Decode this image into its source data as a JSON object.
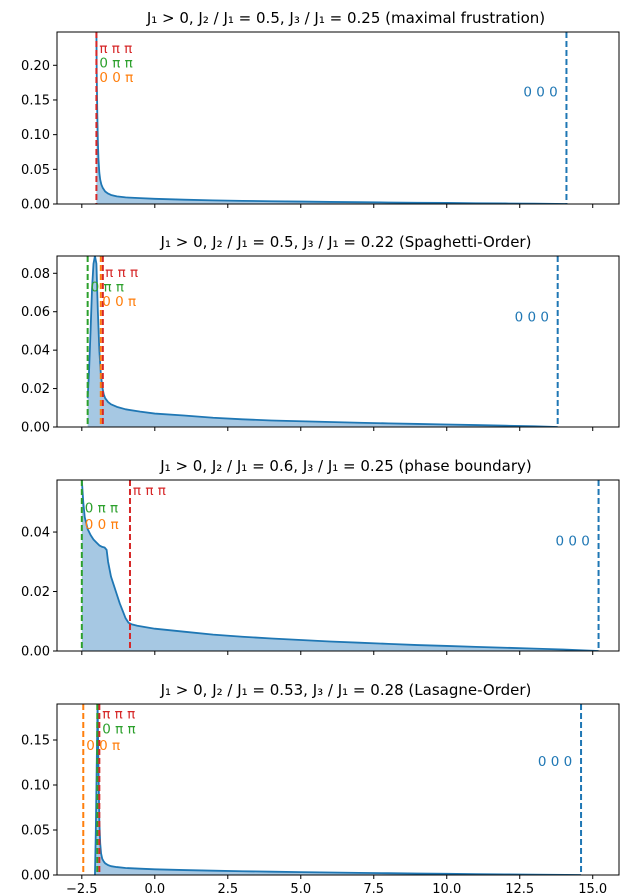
{
  "chart_data": [
    {
      "type": "area",
      "title": "J₁ > 0,    J₂ / J₁ = 0.5,    J₃ / J₁ = 0.25    (maximal frustration)",
      "xlabel": "",
      "ylabel": "",
      "xlim": [
        -3.35,
        15.9
      ],
      "ylim": [
        0,
        0.248
      ],
      "yticks": [
        "0.00",
        "0.05",
        "0.10",
        "0.15",
        "0.20"
      ],
      "ytick_values": [
        0,
        0.05,
        0.1,
        0.15,
        0.2
      ],
      "xtick_values": [
        -2.5,
        0,
        2.5,
        5,
        7.5,
        10,
        12.5,
        15
      ],
      "show_xtick_labels": false,
      "curve_color": "#1f77b4",
      "fill_color": "#a6c8e3",
      "series": [
        {
          "x": [
            -2.0,
            -1.99,
            -1.97,
            -1.95,
            -1.93,
            -1.9,
            -1.87,
            -1.83,
            -1.78,
            -1.7,
            -1.6,
            -1.5,
            -1.3,
            -1.0,
            -0.5,
            0,
            1,
            2,
            3,
            4,
            5,
            6,
            7,
            8,
            9,
            10,
            11,
            12,
            13,
            14.1
          ],
          "y": [
            0.248,
            0.19,
            0.13,
            0.09,
            0.065,
            0.045,
            0.035,
            0.028,
            0.023,
            0.018,
            0.015,
            0.013,
            0.011,
            0.0095,
            0.0085,
            0.0075,
            0.0062,
            0.0052,
            0.0045,
            0.004,
            0.0035,
            0.003,
            0.0026,
            0.0022,
            0.0018,
            0.0015,
            0.0011,
            0.0008,
            0.0005,
            0.0
          ]
        }
      ],
      "vlines": [
        {
          "x": -2.0,
          "color": "#d62728",
          "label": "π π π"
        },
        {
          "x": 14.1,
          "color": "#1f77b4",
          "label": "0 0 0"
        }
      ],
      "annotations": [
        {
          "text": "π π π",
          "color": "#d62728",
          "x": -1.9,
          "y": 0.218,
          "anchor": "start"
        },
        {
          "text": "0 π π",
          "color": "#2ca02c",
          "x": -1.9,
          "y": 0.197,
          "anchor": "start"
        },
        {
          "text": "0 0 π",
          "color": "#ff7f0e",
          "x": -1.9,
          "y": 0.176,
          "anchor": "start"
        },
        {
          "text": "0 0 0",
          "color": "#1f77b4",
          "x": 13.8,
          "y": 0.155,
          "anchor": "end"
        }
      ]
    },
    {
      "type": "area",
      "title": "J₁ > 0,    J₂ / J₁ = 0.5,    J₃ / J₁ = 0.22    (Spaghetti-Order)",
      "xlabel": "",
      "ylabel": "",
      "xlim": [
        -3.35,
        15.9
      ],
      "ylim": [
        0,
        0.089
      ],
      "yticks": [
        "0.00",
        "0.02",
        "0.04",
        "0.06",
        "0.08"
      ],
      "ytick_values": [
        0,
        0.02,
        0.04,
        0.06,
        0.08
      ],
      "xtick_values": [
        -2.5,
        0,
        2.5,
        5,
        7.5,
        10,
        12.5,
        15
      ],
      "show_xtick_labels": false,
      "curve_color": "#1f77b4",
      "fill_color": "#a6c8e3",
      "series": [
        {
          "x": [
            -2.3,
            -2.25,
            -2.2,
            -2.15,
            -2.1,
            -2.05,
            -2.0,
            -1.95,
            -1.9,
            -1.85,
            -1.8,
            -1.75,
            -1.7,
            -1.6,
            -1.5,
            -1.3,
            -1.0,
            -0.5,
            0,
            1,
            2,
            3,
            4,
            5,
            6,
            7,
            8,
            9,
            10,
            11,
            12,
            13,
            13.8
          ],
          "y": [
            0.015,
            0.03,
            0.05,
            0.072,
            0.085,
            0.089,
            0.085,
            0.06,
            0.04,
            0.028,
            0.021,
            0.017,
            0.015,
            0.013,
            0.0118,
            0.0105,
            0.0092,
            0.008,
            0.007,
            0.006,
            0.0048,
            0.004,
            0.0034,
            0.003,
            0.0026,
            0.0022,
            0.0019,
            0.0016,
            0.0013,
            0.001,
            0.0007,
            0.0004,
            0.0
          ]
        }
      ],
      "vlines": [
        {
          "x": -2.3,
          "color": "#2ca02c",
          "label": "0 π π"
        },
        {
          "x": -1.85,
          "color": "#ff7f0e",
          "label": "0 0 π"
        },
        {
          "x": -1.78,
          "color": "#d62728",
          "label": "π π π"
        },
        {
          "x": 13.8,
          "color": "#1f77b4",
          "label": "0 0 0"
        }
      ],
      "annotations": [
        {
          "text": "π π π",
          "color": "#d62728",
          "x": -1.7,
          "y": 0.078,
          "anchor": "start"
        },
        {
          "text": "0 π π",
          "color": "#2ca02c",
          "x": -2.2,
          "y": 0.0705,
          "anchor": "start"
        },
        {
          "text": "0 0 π",
          "color": "#ff7f0e",
          "x": -1.8,
          "y": 0.063,
          "anchor": "start"
        },
        {
          "text": "0 0 0",
          "color": "#1f77b4",
          "x": 13.5,
          "y": 0.055,
          "anchor": "end"
        }
      ]
    },
    {
      "type": "area",
      "title": "J₁ > 0,    J₂ / J₁ = 0.6,    J₃ / J₁ = 0.25    (phase boundary)",
      "xlabel": "",
      "ylabel": "",
      "xlim": [
        -3.35,
        15.9
      ],
      "ylim": [
        0,
        0.0575
      ],
      "yticks": [
        "0.00",
        "0.02",
        "0.04"
      ],
      "ytick_values": [
        0,
        0.02,
        0.04
      ],
      "xtick_values": [
        -2.5,
        0,
        2.5,
        5,
        7.5,
        10,
        12.5,
        15
      ],
      "show_xtick_labels": false,
      "curve_color": "#1f77b4",
      "fill_color": "#a6c8e3",
      "series": [
        {
          "x": [
            -2.5,
            -2.45,
            -2.4,
            -2.3,
            -2.2,
            -2.1,
            -2.0,
            -1.9,
            -1.8,
            -1.72,
            -1.65,
            -1.6,
            -1.5,
            -1.4,
            -1.3,
            -1.2,
            -1.1,
            -1.0,
            -0.9,
            -0.8,
            -0.6,
            -0.3,
            0,
            1,
            2,
            3,
            4,
            5,
            6,
            7,
            8,
            9,
            10,
            11,
            12,
            13,
            14,
            15.2
          ],
          "y": [
            0.0575,
            0.05,
            0.045,
            0.041,
            0.039,
            0.0375,
            0.0365,
            0.0355,
            0.035,
            0.0348,
            0.034,
            0.03,
            0.025,
            0.022,
            0.019,
            0.016,
            0.0135,
            0.011,
            0.0095,
            0.009,
            0.0085,
            0.008,
            0.0075,
            0.0065,
            0.0055,
            0.0048,
            0.0042,
            0.0037,
            0.0032,
            0.0028,
            0.0024,
            0.002,
            0.0017,
            0.0014,
            0.0011,
            0.0008,
            0.0005,
            0.0
          ]
        }
      ],
      "vlines": [
        {
          "x": -2.5,
          "color": "#2ca02c",
          "label": "0 π π"
        },
        {
          "x": -0.85,
          "color": "#d62728",
          "label": "π π π"
        },
        {
          "x": 15.2,
          "color": "#1f77b4",
          "label": "0 0 0"
        }
      ],
      "annotations": [
        {
          "text": "π π π",
          "color": "#d62728",
          "x": -0.75,
          "y": 0.0525,
          "anchor": "start"
        },
        {
          "text": "0 π π",
          "color": "#2ca02c",
          "x": -2.4,
          "y": 0.0465,
          "anchor": "start"
        },
        {
          "text": "0 0 π",
          "color": "#ff7f0e",
          "x": -2.4,
          "y": 0.041,
          "anchor": "start"
        },
        {
          "text": "0 0 0",
          "color": "#1f77b4",
          "x": 14.9,
          "y": 0.0355,
          "anchor": "end"
        }
      ]
    },
    {
      "type": "area",
      "title": "J₁ > 0,    J₂ / J₁ = 0.53,    J₃ / J₁ = 0.28    (Lasagne-Order)",
      "xlabel": "",
      "ylabel": "",
      "xlim": [
        -3.35,
        15.9
      ],
      "ylim": [
        0,
        0.19
      ],
      "yticks": [
        "0.00",
        "0.05",
        "0.10",
        "0.15"
      ],
      "ytick_values": [
        0,
        0.05,
        0.1,
        0.15
      ],
      "xtick_values": [
        -2.5,
        0,
        2.5,
        5,
        7.5,
        10,
        12.5,
        15
      ],
      "xtick_labels": [
        "−2.5",
        "0.0",
        "2.5",
        "5.0",
        "7.5",
        "10.0",
        "12.5",
        "15.0"
      ],
      "show_xtick_labels": true,
      "curve_color": "#1f77b4",
      "fill_color": "#a6c8e3",
      "series": [
        {
          "x": [
            -2.05,
            -2.02,
            -1.99,
            -1.96,
            -1.93,
            -1.9,
            -1.87,
            -1.84,
            -1.8,
            -1.75,
            -1.7,
            -1.6,
            -1.5,
            -1.3,
            -1.0,
            -0.5,
            0,
            1,
            2,
            3,
            4,
            5,
            6,
            7,
            8,
            9,
            10,
            11,
            12,
            13,
            14.6
          ],
          "y": [
            0.0,
            0.05,
            0.12,
            0.19,
            0.12,
            0.06,
            0.035,
            0.024,
            0.018,
            0.015,
            0.013,
            0.011,
            0.0098,
            0.0088,
            0.0078,
            0.007,
            0.0063,
            0.0055,
            0.0048,
            0.0042,
            0.0037,
            0.0032,
            0.0028,
            0.0024,
            0.002,
            0.0016,
            0.0013,
            0.001,
            0.0007,
            0.0004,
            0.0
          ]
        }
      ],
      "vlines": [
        {
          "x": -2.45,
          "color": "#ff7f0e",
          "label": "0 0 π"
        },
        {
          "x": -1.97,
          "color": "#2ca02c",
          "label": "0 π π"
        },
        {
          "x": -1.9,
          "color": "#d62728",
          "label": "π π π"
        },
        {
          "x": 14.6,
          "color": "#1f77b4",
          "label": "0 0 0"
        }
      ],
      "annotations": [
        {
          "text": "π π π",
          "color": "#d62728",
          "x": -1.8,
          "y": 0.174,
          "anchor": "start"
        },
        {
          "text": "0 π π",
          "color": "#2ca02c",
          "x": -1.8,
          "y": 0.157,
          "anchor": "start"
        },
        {
          "text": "0 0 π",
          "color": "#ff7f0e",
          "x": -2.35,
          "y": 0.139,
          "anchor": "start"
        },
        {
          "text": "0 0 0",
          "color": "#1f77b4",
          "x": 14.3,
          "y": 0.121,
          "anchor": "end"
        }
      ]
    }
  ]
}
